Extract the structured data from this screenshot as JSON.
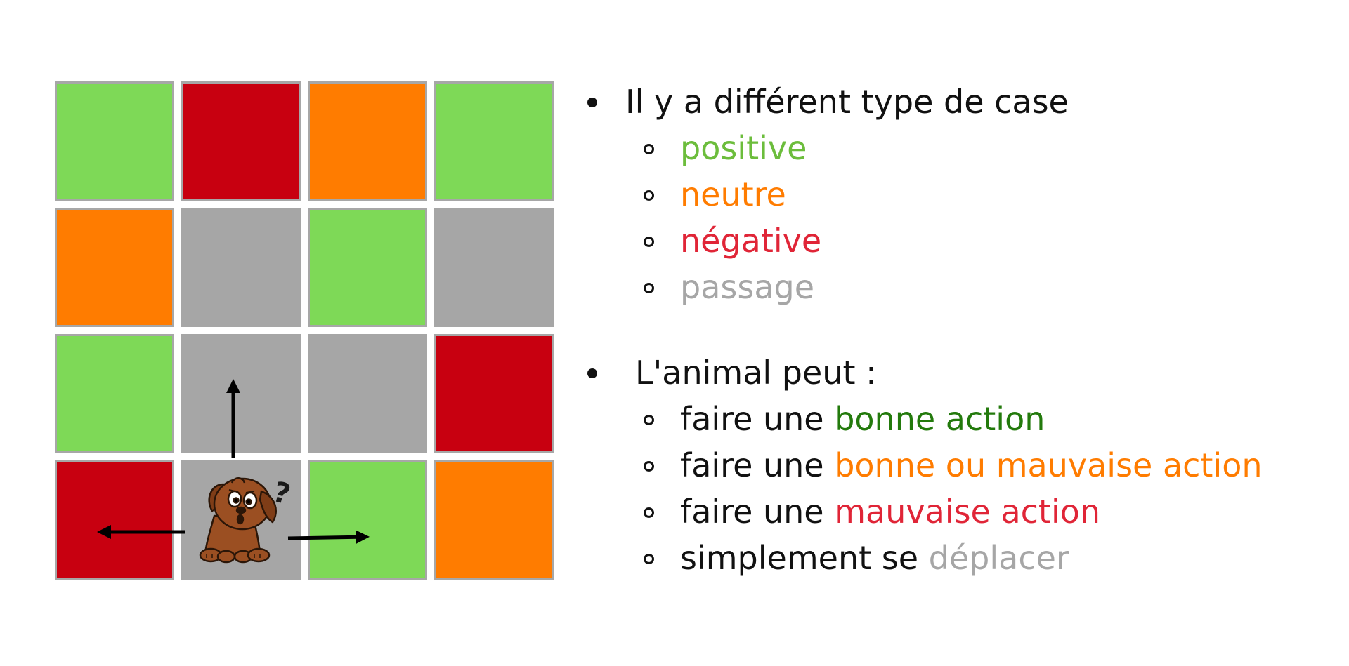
{
  "grid": {
    "colors": {
      "green": "#7ed957",
      "red": "#c80010",
      "orange": "#ff7c00",
      "gray": "#a6a6a6"
    },
    "rows": [
      [
        "green",
        "red",
        "orange",
        "green"
      ],
      [
        "orange",
        "gray",
        "green",
        "gray"
      ],
      [
        "green",
        "gray",
        "gray",
        "red"
      ],
      [
        "red",
        "gray",
        "green",
        "orange"
      ]
    ],
    "animal": {
      "icon": "puppy-icon",
      "question_mark": "?",
      "arrows": [
        "up",
        "left",
        "right"
      ]
    }
  },
  "text": {
    "section1": {
      "heading": "Il y a différent type de case",
      "items": [
        {
          "label": "positive",
          "color": "#6cbd3c"
        },
        {
          "label": "neutre",
          "color": "#ff7c00"
        },
        {
          "label": "négative",
          "color": "#e02537"
        },
        {
          "label": "passage",
          "color": "#a6a6a6"
        }
      ]
    },
    "section2": {
      "heading": "L'animal peut :",
      "item1": {
        "prefix": "faire une ",
        "highlight": "bonne action"
      },
      "item2": {
        "prefix": "faire une ",
        "highlight_a": "bonne",
        "middle": " ou ",
        "highlight_b": "mauvaise action"
      },
      "item3": {
        "prefix": "faire une ",
        "highlight": "mauvaise action"
      },
      "item4": {
        "prefix": "simplement se ",
        "highlight": "déplacer"
      }
    }
  }
}
